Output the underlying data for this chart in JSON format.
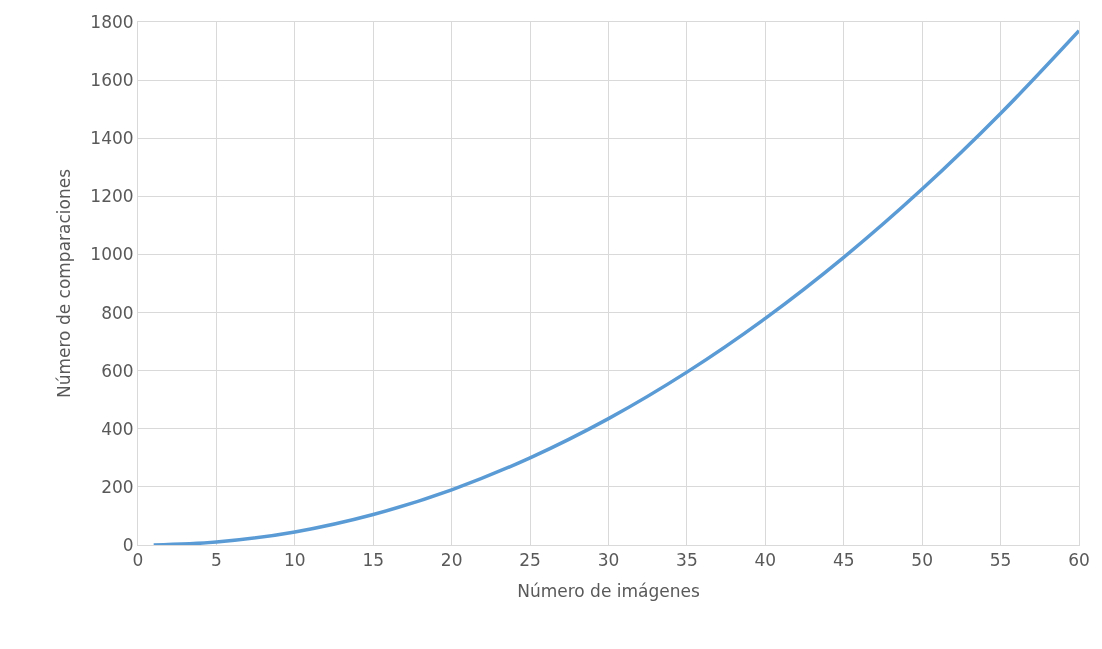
{
  "chart_data": {
    "type": "line",
    "xlabel": "Número de imágenes",
    "ylabel": "Número de comparaciones",
    "x": [
      1,
      5,
      10,
      15,
      20,
      25,
      30,
      35,
      40,
      45,
      50,
      55,
      60
    ],
    "series": [
      {
        "color": "#5b9bd5",
        "values": [
          0,
          10,
          45,
          105,
          190,
          300,
          435,
          595,
          780,
          990,
          1225,
          1485,
          1770
        ]
      }
    ],
    "xlim": [
      0,
      60
    ],
    "xticks": [
      0,
      5,
      10,
      15,
      20,
      25,
      30,
      35,
      40,
      45,
      50,
      55,
      60
    ],
    "ylim": [
      0,
      1800
    ],
    "yticks": [
      0,
      200,
      400,
      600,
      800,
      1000,
      1200,
      1400,
      1600,
      1800
    ],
    "grid": true,
    "marker": "none",
    "line_style": "solid"
  }
}
